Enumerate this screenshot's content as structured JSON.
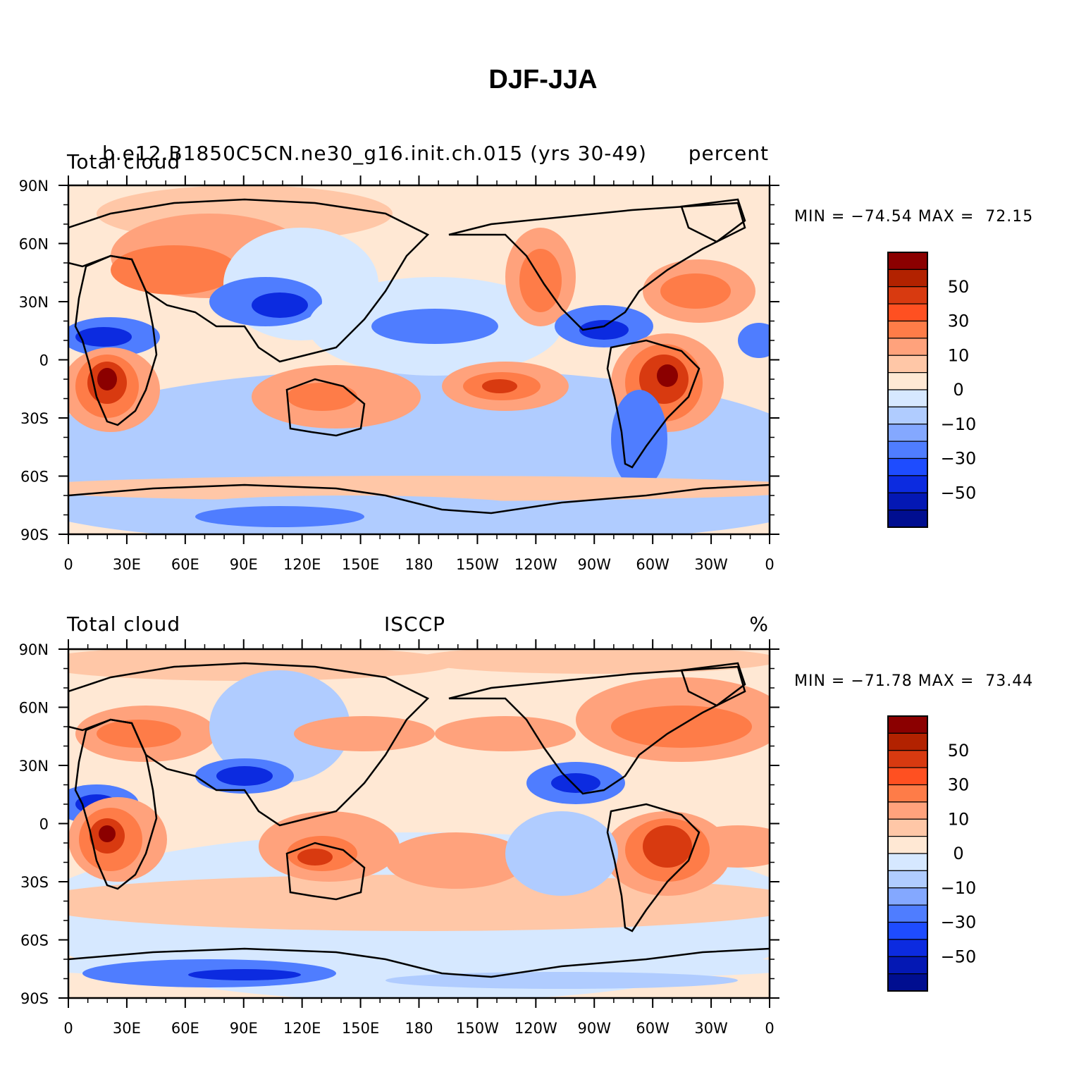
{
  "title": "DJF-JJA",
  "panels": [
    {
      "left_label": "Total cloud",
      "center_label": "b.e12.B1850C5CN.ne30_g16.init.ch.015 (yrs 30-49)",
      "right_label": "percent",
      "min_max": "MIN = −74.54 MAX =  72.15"
    },
    {
      "left_label": "Total cloud",
      "center_label": "ISCCP",
      "right_label": "%",
      "min_max": "MIN = −71.78 MAX =  73.44"
    }
  ],
  "axes": {
    "lat_labels": [
      "90N",
      "60N",
      "30N",
      "0",
      "30S",
      "60S",
      "90S"
    ],
    "lon_labels": [
      "0",
      "30E",
      "60E",
      "90E",
      "120E",
      "150E",
      "180",
      "150W",
      "120W",
      "90W",
      "60W",
      "30W",
      "0"
    ]
  },
  "colorbar": {
    "labels": [
      "50",
      "30",
      "10",
      "0",
      "−10",
      "−30",
      "−50"
    ],
    "colors": [
      "#8b0000",
      "#b22200",
      "#d83a10",
      "#ff5021",
      "#fe7c48",
      "#ffa27c",
      "#ffc7a7",
      "#ffe8d4",
      "#d6e8ff",
      "#b0ccff",
      "#84a8ff",
      "#4f7dff",
      "#1e4cff",
      "#0c2be0",
      "#0418b4",
      "#000e90"
    ]
  },
  "palette": {
    "red_dark": "#8b0000",
    "red": "#d83a10",
    "orange": "#fe7c48",
    "salmon": "#ffa27c",
    "peach": "#ffc7a7",
    "cream": "#ffe8d4",
    "light_blue": "#d6e8ff",
    "pale_blue": "#b0ccff",
    "blue": "#4f7dff",
    "deep_blue": "#0c2be0",
    "navy": "#000e90"
  }
}
